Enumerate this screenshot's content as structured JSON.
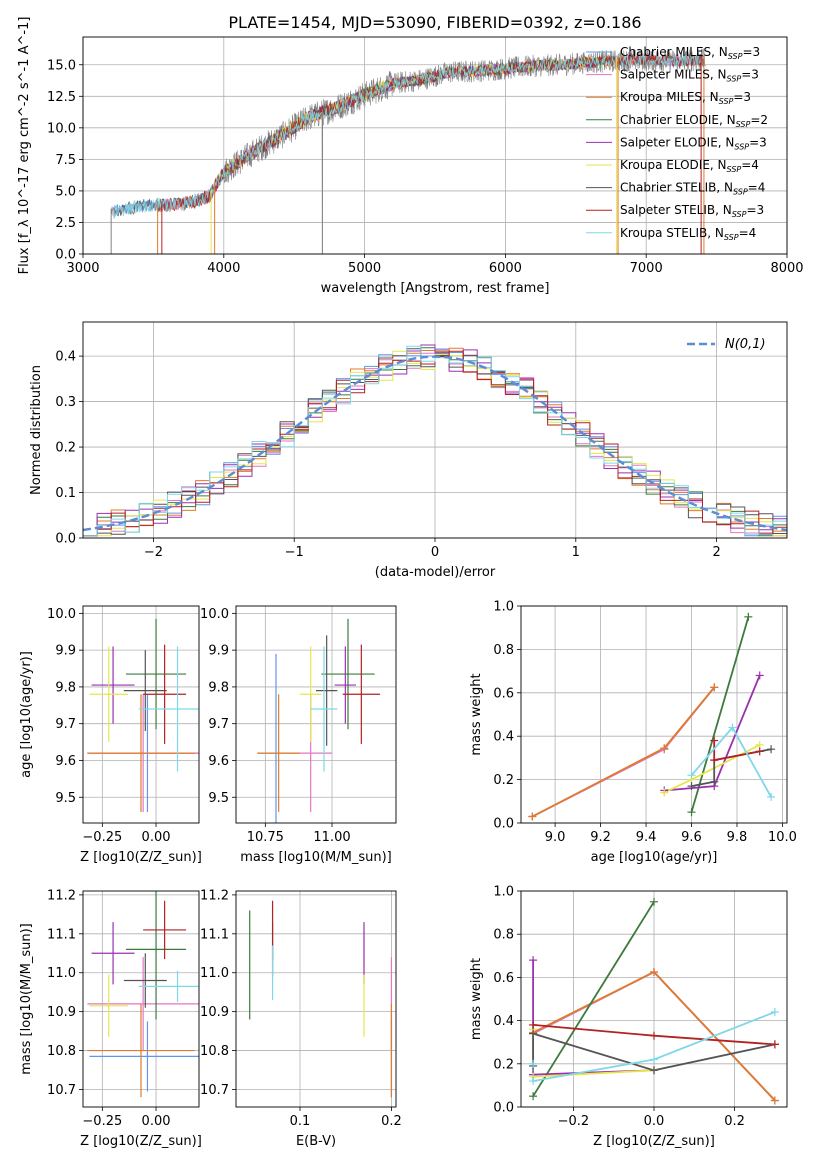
{
  "figure_title": "PLATE=1454, MJD=53090, FIBERID=0392, z=0.186",
  "colors": {
    "chabrier_miles": "#6495ED",
    "salpeter_miles": "#E377C2",
    "kroupa_miles": "#E07B2A",
    "chabrier_elodie": "#3D7A3D",
    "salpeter_elodie": "#9B30B0",
    "kroupa_elodie": "#E6E64C",
    "chabrier_stelib": "#555555",
    "salpeter_stelib": "#B22222",
    "kroupa_stelib": "#7FD8E8",
    "gauss": "#5B8DD6",
    "data_spectrum": "#808080"
  },
  "chart_data": [
    {
      "id": "spectrum",
      "type": "line",
      "xlabel": "wavelength [Angstrom, rest frame]",
      "ylabel": "Flux [f_λ 10^-17 erg cm^-2 s^-1 A^-1]",
      "xlim": [
        3000,
        8000
      ],
      "ylim": [
        0,
        17.2
      ],
      "xticks": [
        3000,
        4000,
        5000,
        6000,
        7000,
        8000
      ],
      "yticks": [
        0.0,
        2.5,
        5.0,
        7.5,
        10.0,
        12.5,
        15.0
      ],
      "legend_position": "top-right",
      "legend": [
        {
          "label": "Chabrier MILES, N_SSP=3",
          "color_key": "chabrier_miles"
        },
        {
          "label": "Salpeter MILES, N_SSP=3",
          "color_key": "salpeter_miles"
        },
        {
          "label": "Kroupa MILES, N_SSP=3",
          "color_key": "kroupa_miles"
        },
        {
          "label": "Chabrier ELODIE, N_SSP=2",
          "color_key": "chabrier_elodie"
        },
        {
          "label": "Salpeter ELODIE, N_SSP=3",
          "color_key": "salpeter_elodie"
        },
        {
          "label": "Kroupa ELODIE, N_SSP=4",
          "color_key": "kroupa_elodie"
        },
        {
          "label": "Chabrier STELIB, N_SSP=4",
          "color_key": "chabrier_stelib"
        },
        {
          "label": "Salpeter STELIB, N_SSP=3",
          "color_key": "salpeter_stelib"
        },
        {
          "label": "Kroupa STELIB, N_SSP=4",
          "color_key": "kroupa_stelib"
        }
      ],
      "data_range": [
        3200,
        7420
      ],
      "model_continuum": [
        [
          3200,
          3.3
        ],
        [
          3400,
          3.8
        ],
        [
          3600,
          3.9
        ],
        [
          3700,
          4.0
        ],
        [
          3800,
          4.2
        ],
        [
          3900,
          4.6
        ],
        [
          4000,
          6.5
        ],
        [
          4200,
          8.0
        ],
        [
          4400,
          9.3
        ],
        [
          4600,
          10.8
        ],
        [
          4800,
          11.6
        ],
        [
          5000,
          12.6
        ],
        [
          5200,
          13.5
        ],
        [
          5400,
          13.8
        ],
        [
          5600,
          14.4
        ],
        [
          5800,
          14.5
        ],
        [
          6000,
          14.7
        ],
        [
          6200,
          14.9
        ],
        [
          6400,
          15.0
        ],
        [
          6600,
          15.2
        ],
        [
          6800,
          15.3
        ],
        [
          7000,
          15.4
        ],
        [
          7200,
          15.3
        ],
        [
          7420,
          15.4
        ]
      ],
      "vertical_edges": [
        [
          3200,
          0,
          "data_spectrum"
        ],
        [
          3530,
          0,
          "kroupa_miles"
        ],
        [
          3560,
          0,
          "salpeter_stelib"
        ],
        [
          3910,
          0,
          "kroupa_elodie"
        ],
        [
          3935,
          0,
          "kroupa_miles"
        ],
        [
          6790,
          0,
          "kroupa_elodie"
        ],
        [
          6800,
          0,
          "kroupa_miles"
        ],
        [
          7390,
          0,
          "salpeter_stelib"
        ],
        [
          7410,
          0,
          "kroupa_miles"
        ],
        [
          4700,
          0,
          "data_spectrum"
        ]
      ]
    },
    {
      "id": "residuals",
      "type": "histogram",
      "xlabel": "(data-model)/error",
      "ylabel": "Normed distribution",
      "xlim": [
        -2.5,
        2.5
      ],
      "ylim": [
        0,
        0.475
      ],
      "xticks": [
        -2,
        -1,
        0,
        1,
        2
      ],
      "yticks": [
        0.0,
        0.1,
        0.2,
        0.3,
        0.4
      ],
      "legend_position": "top-right",
      "legend": [
        {
          "label": "N(0,1)",
          "color_key": "gauss",
          "style": "dashed"
        }
      ],
      "bin_width": 0.1
    },
    {
      "id": "age_vs_Z",
      "type": "errorbar",
      "xlabel": "Z [log10(Z/Z_sun)]",
      "ylabel": "age [log10(age/yr)]",
      "xlim": [
        -0.34,
        0.2
      ],
      "ylim": [
        9.43,
        10.02
      ],
      "xticks": [
        -0.25,
        0.0
      ],
      "yticks": [
        9.5,
        9.6,
        9.7,
        9.8,
        9.9,
        10.0
      ],
      "points": [
        {
          "model": "chabrier_miles",
          "x": -0.04,
          "xerr": 0.27,
          "y": 9.62,
          "yerr": 0.16
        },
        {
          "model": "salpeter_miles",
          "x": -0.06,
          "xerr": 0.26,
          "y": 9.62,
          "yerr": 0.16
        },
        {
          "model": "kroupa_miles",
          "x": -0.07,
          "xerr": 0.25,
          "y": 9.62,
          "yerr": 0.16
        },
        {
          "model": "chabrier_elodie",
          "x": 0.0,
          "xerr": 0.14,
          "y": 9.835,
          "yerr": 0.15
        },
        {
          "model": "salpeter_elodie",
          "x": -0.2,
          "xerr": 0.1,
          "y": 9.805,
          "yerr": 0.105
        },
        {
          "model": "kroupa_elodie",
          "x": -0.22,
          "xerr": 0.09,
          "y": 9.78,
          "yerr": 0.13
        },
        {
          "model": "chabrier_stelib",
          "x": -0.05,
          "xerr": 0.1,
          "y": 9.79,
          "yerr": 0.11
        },
        {
          "model": "salpeter_stelib",
          "x": 0.04,
          "xerr": 0.1,
          "y": 9.78,
          "yerr": 0.135
        },
        {
          "model": "kroupa_stelib",
          "x": 0.1,
          "xerr": 0.18,
          "y": 9.74,
          "yerr": 0.17
        }
      ]
    },
    {
      "id": "age_vs_mass",
      "type": "errorbar",
      "xlabel": "mass [log10(M/M_sun)]",
      "ylabel": "",
      "xlim": [
        10.64,
        11.24
      ],
      "ylim": [
        9.43,
        10.02
      ],
      "xticks": [
        10.75,
        11.0
      ],
      "yticks": [
        9.5,
        9.6,
        9.7,
        9.8,
        9.9,
        10.0
      ],
      "points": [
        {
          "model": "chabrier_miles",
          "x": 10.79,
          "xerr": 0.07,
          "y": 9.62,
          "yerr": 0.27
        },
        {
          "model": "salpeter_miles",
          "x": 10.92,
          "xerr": 0.08,
          "y": 9.62,
          "yerr": 0.16
        },
        {
          "model": "kroupa_miles",
          "x": 10.8,
          "xerr": 0.08,
          "y": 9.62,
          "yerr": 0.16
        },
        {
          "model": "chabrier_elodie",
          "x": 11.06,
          "xerr": 0.1,
          "y": 9.835,
          "yerr": 0.15
        },
        {
          "model": "salpeter_elodie",
          "x": 11.05,
          "xerr": 0.04,
          "y": 9.805,
          "yerr": 0.105
        },
        {
          "model": "kroupa_elodie",
          "x": 10.92,
          "xerr": 0.04,
          "y": 9.78,
          "yerr": 0.13
        },
        {
          "model": "chabrier_stelib",
          "x": 10.98,
          "xerr": 0.04,
          "y": 9.79,
          "yerr": 0.15
        },
        {
          "model": "salpeter_stelib",
          "x": 11.11,
          "xerr": 0.07,
          "y": 9.78,
          "yerr": 0.135
        },
        {
          "model": "kroupa_stelib",
          "x": 10.97,
          "xerr": 0.05,
          "y": 9.74,
          "yerr": 0.17
        }
      ]
    },
    {
      "id": "weight_vs_age",
      "type": "line",
      "xlabel": "age [log10(age/yr)]",
      "ylabel": "mass weight",
      "xlim": [
        8.85,
        10.02
      ],
      "ylim": [
        0,
        1.0
      ],
      "xticks": [
        9.0,
        9.2,
        9.4,
        9.6,
        9.8,
        10.0
      ],
      "yticks": [
        0.0,
        0.2,
        0.4,
        0.6,
        0.8,
        1.0
      ],
      "series": [
        {
          "model": "chabrier_miles",
          "x": [
            8.9,
            9.48,
            9.7
          ],
          "y": [
            0.03,
            0.34,
            0.625
          ]
        },
        {
          "model": "salpeter_miles",
          "x": [
            8.9,
            9.48,
            9.7
          ],
          "y": [
            0.03,
            0.34,
            0.625
          ]
        },
        {
          "model": "kroupa_miles",
          "x": [
            8.9,
            9.48,
            9.7
          ],
          "y": [
            0.03,
            0.345,
            0.625
          ]
        },
        {
          "model": "chabrier_elodie",
          "x": [
            9.6,
            9.85
          ],
          "y": [
            0.05,
            0.95
          ]
        },
        {
          "model": "salpeter_elodie",
          "x": [
            9.48,
            9.7,
            9.9
          ],
          "y": [
            0.15,
            0.17,
            0.68
          ]
        },
        {
          "model": "kroupa_elodie",
          "x": [
            9.48,
            9.6,
            9.9
          ],
          "y": [
            0.14,
            0.2,
            0.36
          ]
        },
        {
          "model": "chabrier_stelib",
          "x": [
            9.6,
            9.7,
            9.7,
            9.95
          ],
          "y": [
            0.17,
            0.19,
            0.29,
            0.34
          ]
        },
        {
          "model": "salpeter_stelib",
          "x": [
            9.7,
            9.7,
            9.9
          ],
          "y": [
            0.38,
            0.29,
            0.33
          ]
        },
        {
          "model": "kroupa_stelib",
          "x": [
            9.6,
            9.78,
            9.95
          ],
          "y": [
            0.22,
            0.44,
            0.12
          ]
        }
      ]
    },
    {
      "id": "mass_vs_Z",
      "type": "errorbar",
      "xlabel": "Z [log10(Z/Z_sun)]",
      "ylabel": "mass [log10(M/M_sun)]",
      "xlim": [
        -0.34,
        0.2
      ],
      "ylim": [
        10.655,
        11.21
      ],
      "xticks": [
        -0.25,
        0.0
      ],
      "yticks": [
        10.7,
        10.8,
        10.9,
        11.0,
        11.1,
        11.2
      ],
      "points": [
        {
          "model": "chabrier_miles",
          "x": -0.04,
          "xerr": 0.27,
          "y": 10.785,
          "yerr": 0.09
        },
        {
          "model": "salpeter_miles",
          "x": -0.06,
          "xerr": 0.26,
          "y": 10.92,
          "yerr": 0.12
        },
        {
          "model": "kroupa_miles",
          "x": -0.07,
          "xerr": 0.25,
          "y": 10.8,
          "yerr": 0.12
        },
        {
          "model": "chabrier_elodie",
          "x": 0.0,
          "xerr": 0.14,
          "y": 11.06,
          "yerr": 0.18
        },
        {
          "model": "salpeter_elodie",
          "x": -0.2,
          "xerr": 0.1,
          "y": 11.05,
          "yerr": 0.08
        },
        {
          "model": "kroupa_elodie",
          "x": -0.22,
          "xerr": 0.09,
          "y": 10.915,
          "yerr": 0.08
        },
        {
          "model": "chabrier_stelib",
          "x": -0.05,
          "xerr": 0.1,
          "y": 10.98,
          "yerr": 0.07
        },
        {
          "model": "salpeter_stelib",
          "x": 0.04,
          "xerr": 0.1,
          "y": 11.11,
          "yerr": 0.075
        },
        {
          "model": "kroupa_stelib",
          "x": 0.1,
          "xerr": 0.18,
          "y": 10.965,
          "yerr": 0.04
        }
      ]
    },
    {
      "id": "mass_vs_ebv",
      "type": "errorbar",
      "xlabel": "E(B-V)",
      "ylabel": "",
      "xlim": [
        0.03,
        0.205
      ],
      "ylim": [
        10.655,
        11.21
      ],
      "xticks": [
        0.1,
        0.2
      ],
      "yticks": [
        10.7,
        10.8,
        10.9,
        11.0,
        11.1,
        11.2
      ],
      "points": [
        {
          "model": "chabrier_miles",
          "x": 0.2,
          "xerr": 0,
          "y": 10.78,
          "yerr": 0.1
        },
        {
          "model": "salpeter_miles",
          "x": 0.2,
          "xerr": 0,
          "y": 10.92,
          "yerr": 0.12
        },
        {
          "model": "kroupa_miles",
          "x": 0.2,
          "xerr": 0,
          "y": 10.8,
          "yerr": 0.12
        },
        {
          "model": "chabrier_elodie",
          "x": 0.045,
          "xerr": 0,
          "y": 11.02,
          "yerr": 0.14
        },
        {
          "model": "salpeter_elodie",
          "x": 0.17,
          "xerr": 0,
          "y": 11.05,
          "yerr": 0.08
        },
        {
          "model": "kroupa_elodie",
          "x": 0.17,
          "xerr": 0,
          "y": 10.915,
          "yerr": 0.08
        },
        {
          "model": "chabrier_stelib",
          "x": 0.07,
          "xerr": 0,
          "y": 11.06,
          "yerr": 0.07
        },
        {
          "model": "salpeter_stelib",
          "x": 0.07,
          "xerr": 0,
          "y": 11.11,
          "yerr": 0.075
        },
        {
          "model": "kroupa_stelib",
          "x": 0.07,
          "xerr": 0,
          "y": 11.0,
          "yerr": 0.07
        }
      ]
    },
    {
      "id": "weight_vs_Z",
      "type": "line",
      "xlabel": "Z [log10(Z/Z_sun)]",
      "ylabel": "mass weight",
      "xlim": [
        -0.33,
        0.33
      ],
      "ylim": [
        0,
        1.0
      ],
      "xticks": [
        -0.2,
        0.0,
        0.2
      ],
      "yticks": [
        0.0,
        0.2,
        0.4,
        0.6,
        0.8,
        1.0
      ],
      "series": [
        {
          "model": "chabrier_miles",
          "x": [
            -0.3,
            0.0,
            0.3
          ],
          "y": [
            0.34,
            0.625,
            0.03
          ]
        },
        {
          "model": "salpeter_miles",
          "x": [
            -0.3,
            0.0,
            0.3
          ],
          "y": [
            0.34,
            0.625,
            0.03
          ]
        },
        {
          "model": "kroupa_miles",
          "x": [
            -0.3,
            0.0,
            0.3
          ],
          "y": [
            0.345,
            0.625,
            0.03
          ]
        },
        {
          "model": "chabrier_elodie",
          "x": [
            -0.3,
            0.0
          ],
          "y": [
            0.05,
            0.95
          ]
        },
        {
          "model": "salpeter_elodie",
          "x": [
            -0.3,
            -0.3,
            -0.3,
            0.0
          ],
          "y": [
            0.68,
            0.15,
            0.15,
            0.17
          ]
        },
        {
          "model": "kroupa_elodie",
          "x": [
            -0.3,
            -0.3,
            0.0
          ],
          "y": [
            0.36,
            0.14,
            0.17
          ]
        },
        {
          "model": "chabrier_stelib",
          "x": [
            -0.3,
            -0.3,
            0.0,
            0.3
          ],
          "y": [
            0.19,
            0.34,
            0.17,
            0.29
          ]
        },
        {
          "model": "salpeter_stelib",
          "x": [
            -0.3,
            0.0,
            0.3
          ],
          "y": [
            0.38,
            0.33,
            0.29
          ]
        },
        {
          "model": "kroupa_stelib",
          "x": [
            -0.3,
            -0.3,
            0.0,
            0.3
          ],
          "y": [
            0.2,
            0.12,
            0.22,
            0.44
          ]
        }
      ]
    }
  ]
}
